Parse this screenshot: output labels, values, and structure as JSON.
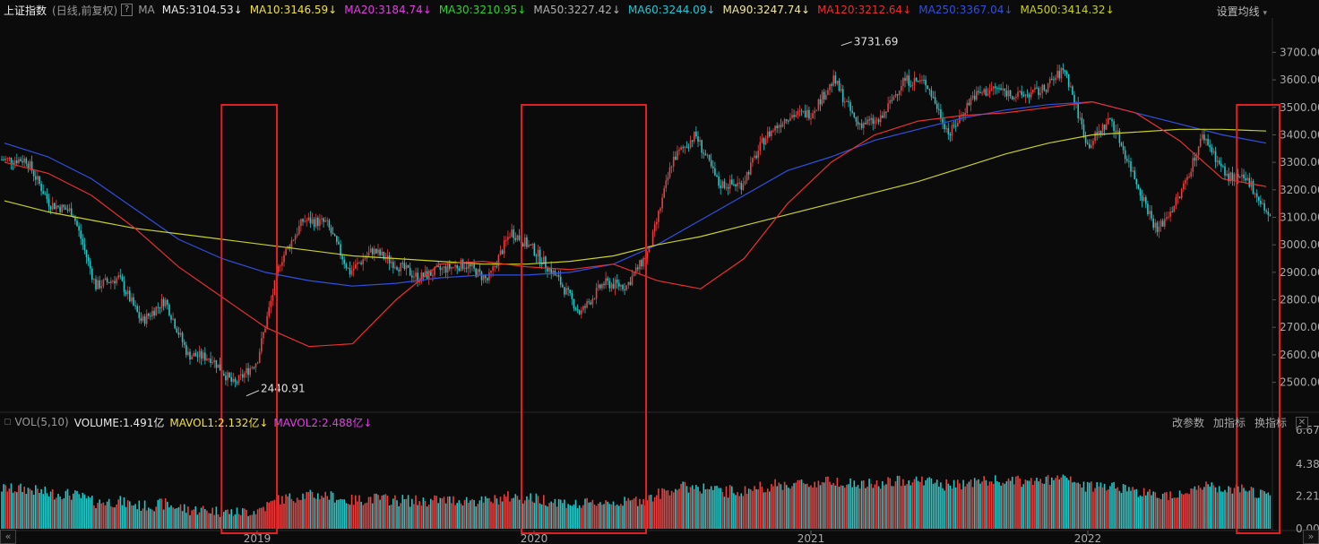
{
  "header": {
    "index_name": "上证指数",
    "period": "(日线,前复权)",
    "help": "?",
    "ma_label": "MA",
    "ma_items": [
      {
        "text": "MA5:3104.53",
        "arrow": "↓",
        "color": "#e8e8e8"
      },
      {
        "text": "MA10:3146.59",
        "arrow": "↓",
        "color": "#f0e040"
      },
      {
        "text": "MA20:3184.74",
        "arrow": "↓",
        "color": "#e040e0"
      },
      {
        "text": "MA30:3210.95",
        "arrow": "↓",
        "color": "#30d030"
      },
      {
        "text": "MA50:3227.42",
        "arrow": "↓",
        "color": "#b0b0b0"
      },
      {
        "text": "MA60:3244.09",
        "arrow": "↓",
        "color": "#20c8d8"
      },
      {
        "text": "MA90:3247.74",
        "arrow": "↓",
        "color": "#f0e8a0"
      },
      {
        "text": "MA120:3212.64",
        "arrow": "↓",
        "color": "#e83030"
      },
      {
        "text": "MA250:3367.04",
        "arrow": "↓",
        "color": "#3050e0"
      },
      {
        "text": "MA500:3414.32",
        "arrow": "↓",
        "color": "#c8d020"
      }
    ],
    "settings": "设置均线",
    "settings_arrow": "▾"
  },
  "volume_header": {
    "label": "VOL(5,10)",
    "volume": "VOLUME:1.491亿",
    "mavol1": "MAVOL1:2.132亿",
    "mavol1_arrow": "↓",
    "mavol2": "MAVOL2:2.488亿",
    "mavol2_arrow": "↓",
    "actions": [
      "改参数",
      "加指标",
      "换指标"
    ],
    "close": "✕"
  },
  "chart_data": {
    "type": "candlestick",
    "price_axis": {
      "ticks": [
        "3700.00",
        "3600.00",
        "3500.00",
        "3400.00",
        "3300.00",
        "3200.00",
        "3100.00",
        "3000.00",
        "2900.00",
        "2800.00",
        "2700.00",
        "2600.00",
        "2500.00"
      ],
      "range": [
        2440,
        3760
      ]
    },
    "volume_axis": {
      "ticks": [
        "6.67",
        "4.38",
        "2.21",
        "0.00"
      ]
    },
    "x_labels": [
      "2019",
      "2020",
      "2021",
      "2022"
    ],
    "annotations": [
      {
        "text": "3731.69",
        "date": "2021-02"
      },
      {
        "text": "2440.91",
        "date": "2019-01"
      }
    ],
    "close_series": [
      [
        "2018-03",
        3310
      ],
      [
        "2018-04",
        3150
      ],
      [
        "2018-05",
        3120
      ],
      [
        "2018-06",
        2850
      ],
      [
        "2018-07",
        2880
      ],
      [
        "2018-08",
        2720
      ],
      [
        "2018-09",
        2800
      ],
      [
        "2018-10",
        2600
      ],
      [
        "2018-11",
        2590
      ],
      [
        "2018-12",
        2490
      ],
      [
        "2019-01",
        2580
      ],
      [
        "2019-02",
        2940
      ],
      [
        "2019-03",
        3090
      ],
      [
        "2019-04",
        3080
      ],
      [
        "2019-05",
        2900
      ],
      [
        "2019-06",
        2980
      ],
      [
        "2019-07",
        2930
      ],
      [
        "2019-08",
        2880
      ],
      [
        "2019-09",
        2910
      ],
      [
        "2019-10",
        2930
      ],
      [
        "2019-11",
        2870
      ],
      [
        "2019-12",
        3050
      ],
      [
        "2020-01",
        2980
      ],
      [
        "2020-02",
        2880
      ],
      [
        "2020-03",
        2750
      ],
      [
        "2020-04",
        2860
      ],
      [
        "2020-05",
        2850
      ],
      [
        "2020-06",
        2980
      ],
      [
        "2020-07",
        3310
      ],
      [
        "2020-08",
        3400
      ],
      [
        "2020-09",
        3220
      ],
      [
        "2020-10",
        3220
      ],
      [
        "2020-11",
        3390
      ],
      [
        "2020-12",
        3470
      ],
      [
        "2021-01",
        3480
      ],
      [
        "2021-02",
        3600
      ],
      [
        "2021-03",
        3440
      ],
      [
        "2021-04",
        3450
      ],
      [
        "2021-05",
        3600
      ],
      [
        "2021-06",
        3590
      ],
      [
        "2021-07",
        3400
      ],
      [
        "2021-08",
        3540
      ],
      [
        "2021-09",
        3570
      ],
      [
        "2021-10",
        3540
      ],
      [
        "2021-11",
        3560
      ],
      [
        "2021-12",
        3640
      ],
      [
        "2022-01",
        3360
      ],
      [
        "2022-02",
        3460
      ],
      [
        "2022-03",
        3250
      ],
      [
        "2022-04",
        3050
      ],
      [
        "2022-05",
        3180
      ],
      [
        "2022-06",
        3400
      ],
      [
        "2022-07",
        3250
      ],
      [
        "2022-08",
        3230
      ],
      [
        "2022-09",
        3080
      ]
    ],
    "ma_overlays": [
      {
        "name": "MA250",
        "color": "#3050e0",
        "values": [
          3370,
          3320,
          3240,
          3130,
          3020,
          2950,
          2900,
          2870,
          2850,
          2860,
          2880,
          2890,
          2890,
          2900,
          2930,
          3000,
          3090,
          3180,
          3270,
          3320,
          3380,
          3420,
          3460,
          3490,
          3510,
          3520,
          3480,
          3440,
          3400,
          3370
        ]
      },
      {
        "name": "MA500",
        "color": "#c8d020",
        "values": [
          3160,
          3120,
          3090,
          3060,
          3040,
          3020,
          3000,
          2980,
          2960,
          2950,
          2940,
          2930,
          2930,
          2940,
          2960,
          3000,
          3030,
          3070,
          3110,
          3150,
          3190,
          3230,
          3280,
          3330,
          3370,
          3400,
          3410,
          3420,
          3420,
          3414
        ]
      },
      {
        "name": "MA120",
        "color": "#e83030",
        "values": [
          3300,
          3260,
          3180,
          3060,
          2920,
          2810,
          2700,
          2630,
          2640,
          2800,
          2930,
          2940,
          2920,
          2910,
          2930,
          2870,
          2840,
          2950,
          3150,
          3300,
          3400,
          3450,
          3470,
          3480,
          3500,
          3520,
          3480,
          3380,
          3240,
          3212
        ]
      }
    ],
    "highlight_boxes": [
      {
        "from": "2018-12",
        "to": "2019-01"
      },
      {
        "from": "2020-01",
        "to": "2020-05"
      },
      {
        "from": "2022-08",
        "to": "2022-09"
      }
    ]
  }
}
